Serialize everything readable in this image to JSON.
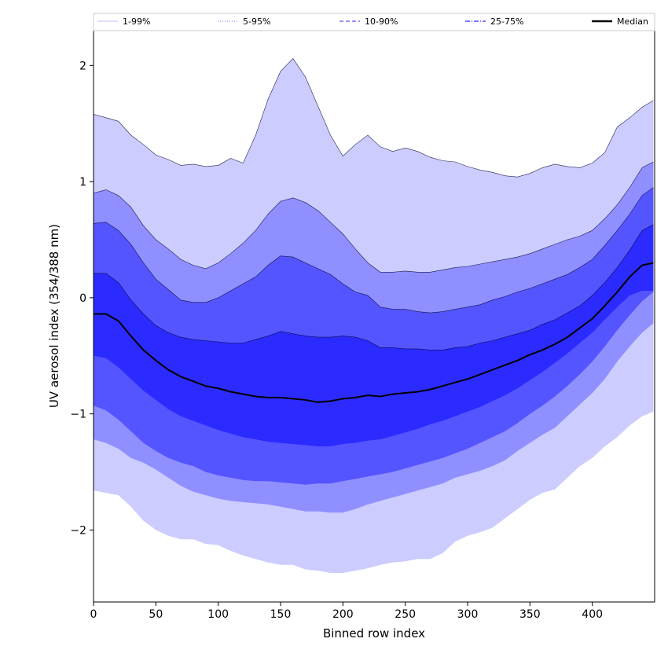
{
  "chart_data": {
    "type": "area",
    "title": "",
    "xlabel": "Binned row index",
    "ylabel": "UV aerosol index (354/388 nm)",
    "xlim": [
      0,
      450
    ],
    "ylim": [
      -2.62,
      2.3
    ],
    "xticks": [
      0,
      50,
      100,
      150,
      200,
      250,
      300,
      350,
      400
    ],
    "yticks": [
      -2,
      -1,
      0,
      1,
      2
    ],
    "legend_position": "top, above plot",
    "grid": false,
    "legend": [
      {
        "label": "1-99%",
        "color": "#ccccff",
        "style": "solid"
      },
      {
        "label": "5-95%",
        "color": "#8f8fff",
        "style": "dotted"
      },
      {
        "label": "10-90%",
        "color": "#5555ff",
        "style": "dashed"
      },
      {
        "label": "25-75%",
        "color": "#2b2bff",
        "style": "dashdot"
      },
      {
        "label": "Median",
        "color": "#000000",
        "style": "solid"
      }
    ],
    "x": [
      0,
      10,
      20,
      30,
      40,
      50,
      60,
      70,
      80,
      90,
      100,
      110,
      120,
      130,
      140,
      150,
      160,
      170,
      180,
      190,
      200,
      210,
      220,
      230,
      240,
      250,
      260,
      270,
      280,
      290,
      300,
      310,
      320,
      330,
      340,
      350,
      360,
      370,
      380,
      390,
      400,
      410,
      420,
      430,
      440,
      449
    ],
    "bands": [
      {
        "name": "1-99%",
        "color": "#ccccff",
        "upper": [
          1.58,
          1.55,
          1.52,
          1.4,
          1.32,
          1.23,
          1.19,
          1.14,
          1.15,
          1.13,
          1.14,
          1.2,
          1.16,
          1.4,
          1.71,
          1.95,
          2.06,
          1.9,
          1.65,
          1.4,
          1.22,
          1.32,
          1.4,
          1.3,
          1.26,
          1.29,
          1.26,
          1.21,
          1.18,
          1.17,
          1.13,
          1.1,
          1.08,
          1.05,
          1.04,
          1.07,
          1.12,
          1.15,
          1.13,
          1.12,
          1.16,
          1.25,
          1.47,
          1.55,
          1.64,
          1.7
        ],
        "lower": [
          -1.66,
          -1.68,
          -1.7,
          -1.8,
          -1.92,
          -2.0,
          -2.05,
          -2.08,
          -2.08,
          -2.12,
          -2.13,
          -2.18,
          -2.22,
          -2.25,
          -2.28,
          -2.3,
          -2.3,
          -2.34,
          -2.35,
          -2.37,
          -2.37,
          -2.35,
          -2.33,
          -2.3,
          -2.28,
          -2.27,
          -2.25,
          -2.25,
          -2.2,
          -2.1,
          -2.05,
          -2.02,
          -1.98,
          -1.9,
          -1.82,
          -1.74,
          -1.68,
          -1.65,
          -1.55,
          -1.45,
          -1.38,
          -1.28,
          -1.2,
          -1.1,
          -1.02,
          -0.98
        ]
      },
      {
        "name": "5-95%",
        "color": "#8f8fff",
        "upper": [
          0.9,
          0.93,
          0.88,
          0.78,
          0.62,
          0.5,
          0.42,
          0.33,
          0.28,
          0.25,
          0.3,
          0.38,
          0.47,
          0.58,
          0.72,
          0.83,
          0.86,
          0.82,
          0.75,
          0.65,
          0.55,
          0.42,
          0.3,
          0.22,
          0.22,
          0.23,
          0.22,
          0.22,
          0.24,
          0.26,
          0.27,
          0.29,
          0.31,
          0.33,
          0.35,
          0.38,
          0.42,
          0.46,
          0.5,
          0.53,
          0.58,
          0.68,
          0.8,
          0.95,
          1.12,
          1.17
        ],
        "lower": [
          -1.22,
          -1.25,
          -1.3,
          -1.38,
          -1.42,
          -1.48,
          -1.55,
          -1.62,
          -1.67,
          -1.7,
          -1.73,
          -1.75,
          -1.76,
          -1.77,
          -1.78,
          -1.8,
          -1.82,
          -1.84,
          -1.84,
          -1.85,
          -1.85,
          -1.82,
          -1.78,
          -1.75,
          -1.72,
          -1.69,
          -1.66,
          -1.63,
          -1.6,
          -1.55,
          -1.52,
          -1.49,
          -1.45,
          -1.4,
          -1.32,
          -1.25,
          -1.18,
          -1.12,
          -1.02,
          -0.92,
          -0.82,
          -0.7,
          -0.55,
          -0.42,
          -0.3,
          -0.22
        ]
      },
      {
        "name": "10-90%",
        "color": "#5555ff",
        "upper": [
          0.64,
          0.65,
          0.58,
          0.46,
          0.3,
          0.16,
          0.07,
          -0.02,
          -0.04,
          -0.04,
          0.0,
          0.06,
          0.12,
          0.18,
          0.28,
          0.36,
          0.35,
          0.3,
          0.25,
          0.2,
          0.12,
          0.05,
          0.02,
          -0.08,
          -0.1,
          -0.1,
          -0.12,
          -0.13,
          -0.12,
          -0.1,
          -0.08,
          -0.06,
          -0.02,
          0.01,
          0.05,
          0.08,
          0.12,
          0.16,
          0.2,
          0.26,
          0.33,
          0.45,
          0.58,
          0.72,
          0.88,
          0.95
        ],
        "lower": [
          -0.93,
          -0.97,
          -1.05,
          -1.15,
          -1.25,
          -1.32,
          -1.38,
          -1.42,
          -1.45,
          -1.5,
          -1.53,
          -1.55,
          -1.57,
          -1.58,
          -1.58,
          -1.59,
          -1.6,
          -1.61,
          -1.6,
          -1.6,
          -1.58,
          -1.56,
          -1.54,
          -1.52,
          -1.5,
          -1.47,
          -1.44,
          -1.41,
          -1.38,
          -1.34,
          -1.3,
          -1.25,
          -1.2,
          -1.15,
          -1.08,
          -1.0,
          -0.93,
          -0.85,
          -0.76,
          -0.66,
          -0.55,
          -0.42,
          -0.28,
          -0.15,
          -0.03,
          0.05
        ]
      },
      {
        "name": "25-75%",
        "color": "#2b2bff",
        "upper": [
          0.21,
          0.21,
          0.13,
          -0.02,
          -0.14,
          -0.24,
          -0.3,
          -0.34,
          -0.36,
          -0.37,
          -0.38,
          -0.39,
          -0.39,
          -0.36,
          -0.33,
          -0.29,
          -0.31,
          -0.33,
          -0.34,
          -0.34,
          -0.33,
          -0.34,
          -0.37,
          -0.43,
          -0.43,
          -0.44,
          -0.44,
          -0.45,
          -0.45,
          -0.43,
          -0.42,
          -0.39,
          -0.37,
          -0.34,
          -0.31,
          -0.28,
          -0.23,
          -0.19,
          -0.13,
          -0.07,
          0.02,
          0.13,
          0.26,
          0.41,
          0.58,
          0.63
        ],
        "lower": [
          -0.5,
          -0.52,
          -0.6,
          -0.7,
          -0.8,
          -0.88,
          -0.96,
          -1.02,
          -1.06,
          -1.1,
          -1.14,
          -1.17,
          -1.2,
          -1.22,
          -1.24,
          -1.25,
          -1.26,
          -1.27,
          -1.28,
          -1.28,
          -1.26,
          -1.25,
          -1.23,
          -1.22,
          -1.19,
          -1.16,
          -1.13,
          -1.09,
          -1.06,
          -1.02,
          -0.98,
          -0.94,
          -0.89,
          -0.84,
          -0.78,
          -0.71,
          -0.64,
          -0.56,
          -0.48,
          -0.39,
          -0.3,
          -0.19,
          -0.08,
          0.02,
          0.06,
          0.06
        ]
      }
    ],
    "median": {
      "name": "Median",
      "color": "#000000",
      "values": [
        -0.14,
        -0.14,
        -0.2,
        -0.33,
        -0.45,
        -0.54,
        -0.62,
        -0.68,
        -0.72,
        -0.76,
        -0.78,
        -0.81,
        -0.83,
        -0.85,
        -0.86,
        -0.86,
        -0.87,
        -0.88,
        -0.9,
        -0.89,
        -0.87,
        -0.86,
        -0.84,
        -0.85,
        -0.83,
        -0.82,
        -0.81,
        -0.79,
        -0.76,
        -0.73,
        -0.7,
        -0.66,
        -0.62,
        -0.58,
        -0.54,
        -0.49,
        -0.45,
        -0.4,
        -0.34,
        -0.26,
        -0.18,
        -0.07,
        0.05,
        0.18,
        0.28,
        0.3
      ]
    }
  }
}
